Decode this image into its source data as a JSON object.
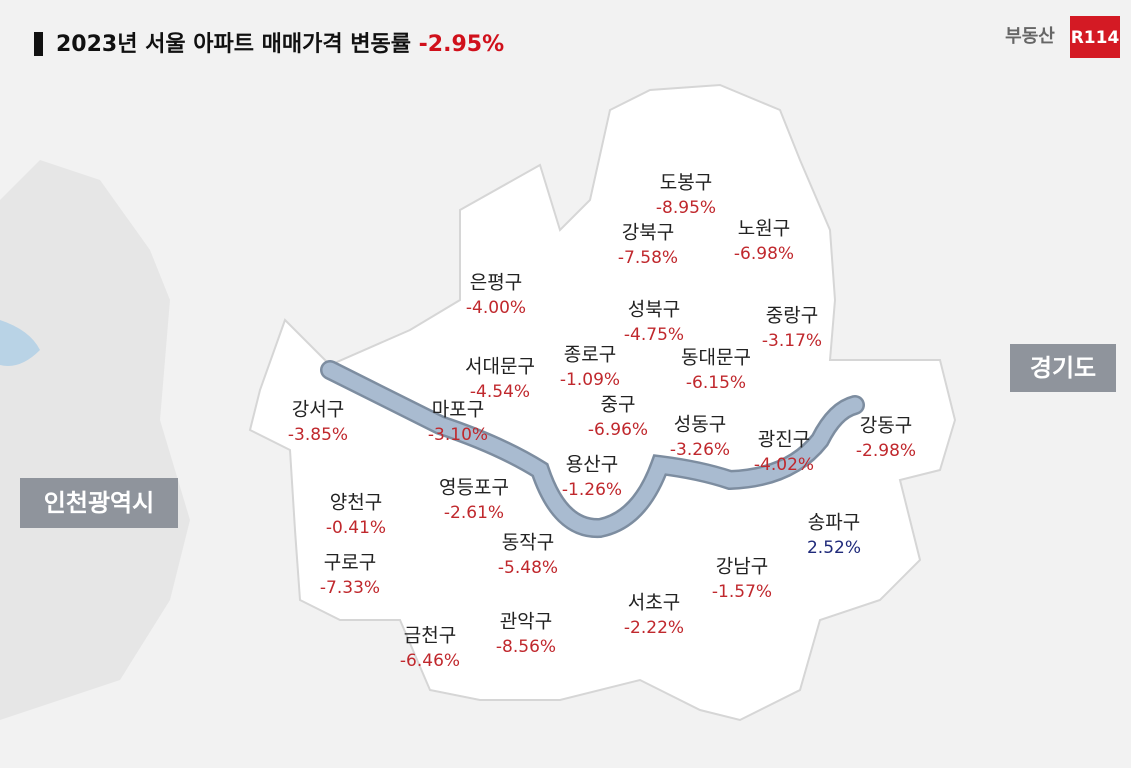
{
  "header": {
    "title": "2023년 서울 아파트 매매가격 변동률",
    "headline_change": "-2.95%",
    "logo_text": "부동산",
    "logo_badge": "R114"
  },
  "regions": [
    "경기도",
    "인천광역시"
  ],
  "districts": [
    {
      "name": "도봉구",
      "change": "-8.95%",
      "color": "#c0282d"
    },
    {
      "name": "강북구",
      "change": "-7.58%",
      "color": "#c0282d"
    },
    {
      "name": "노원구",
      "change": "-6.98%",
      "color": "#c0282d"
    },
    {
      "name": "은평구",
      "change": "-4.00%",
      "color": "#c0282d"
    },
    {
      "name": "성북구",
      "change": "-4.75%",
      "color": "#c0282d"
    },
    {
      "name": "중랑구",
      "change": "-3.17%",
      "color": "#c0282d"
    },
    {
      "name": "종로구",
      "change": "-1.09%",
      "color": "#c0282d"
    },
    {
      "name": "서대문구",
      "change": "-4.54%",
      "color": "#c0282d"
    },
    {
      "name": "동대문구",
      "change": "-6.15%",
      "color": "#c0282d"
    },
    {
      "name": "강서구",
      "change": "-3.85%",
      "color": "#c0282d"
    },
    {
      "name": "마포구",
      "change": "-3.10%",
      "color": "#c0282d"
    },
    {
      "name": "중구",
      "change": "-6.96%",
      "color": "#c0282d"
    },
    {
      "name": "성동구",
      "change": "-3.26%",
      "color": "#c0282d"
    },
    {
      "name": "광진구",
      "change": "-4.02%",
      "color": "#c0282d"
    },
    {
      "name": "강동구",
      "change": "-2.98%",
      "color": "#c0282d"
    },
    {
      "name": "용산구",
      "change": "-1.26%",
      "color": "#c0282d"
    },
    {
      "name": "영등포구",
      "change": "-2.61%",
      "color": "#c0282d"
    },
    {
      "name": "양천구",
      "change": "-0.41%",
      "color": "#c0282d"
    },
    {
      "name": "동작구",
      "change": "-5.48%",
      "color": "#c0282d"
    },
    {
      "name": "송파구",
      "change": "2.52%",
      "color": "#1f2a7a"
    },
    {
      "name": "구로구",
      "change": "-7.33%",
      "color": "#c0282d"
    },
    {
      "name": "강남구",
      "change": "-1.57%",
      "color": "#c0282d"
    },
    {
      "name": "서초구",
      "change": "-2.22%",
      "color": "#c0282d"
    },
    {
      "name": "관악구",
      "change": "-8.56%",
      "color": "#c0282d"
    },
    {
      "name": "금천구",
      "change": "-6.46%",
      "color": "#c0282d"
    }
  ]
}
